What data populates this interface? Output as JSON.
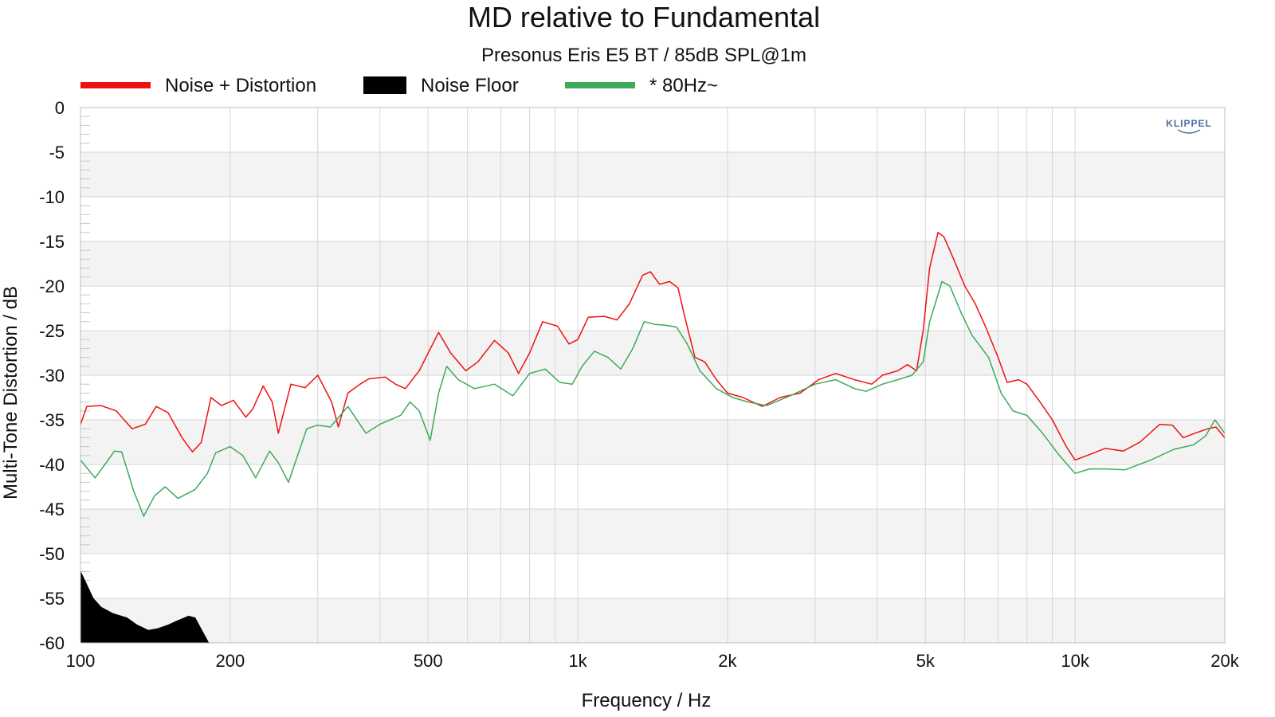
{
  "chart_data": {
    "type": "line",
    "title": "MD relative to Fundamental",
    "subtitle": "Presonus Eris E5 BT / 85dB SPL@1m",
    "xlabel": "Frequency / Hz",
    "ylabel": "Multi-Tone Distortion / dB",
    "x_scale": "log",
    "xlim": [
      100,
      20000
    ],
    "ylim": [
      -60,
      0
    ],
    "x_ticks": [
      100,
      200,
      500,
      1000,
      2000,
      5000,
      10000,
      20000
    ],
    "x_tick_labels": [
      "100",
      "200",
      "500",
      "1k",
      "2k",
      "5k",
      "10k",
      "20k"
    ],
    "y_ticks": [
      0,
      -5,
      -10,
      -15,
      -20,
      -25,
      -30,
      -35,
      -40,
      -45,
      -50,
      -55,
      -60
    ],
    "y_tick_labels": [
      "0",
      "-5",
      "-10",
      "-15",
      "-20",
      "-25",
      "-30",
      "-35",
      "-40",
      "-45",
      "-50",
      "-55",
      "-60"
    ],
    "grid": true,
    "legend_position": "top-left",
    "logo_text": "KLIPPEL",
    "series": [
      {
        "name": "Noise + Distortion",
        "color": "#ee1111",
        "style": "line",
        "points": [
          [
            100,
            -35.5
          ],
          [
            103,
            -33.5
          ],
          [
            110,
            -33.4
          ],
          [
            118,
            -34.0
          ],
          [
            127,
            -36.0
          ],
          [
            135,
            -35.5
          ],
          [
            142,
            -33.5
          ],
          [
            150,
            -34.2
          ],
          [
            160,
            -37.0
          ],
          [
            168,
            -38.6
          ],
          [
            175,
            -37.5
          ],
          [
            183,
            -32.5
          ],
          [
            192,
            -33.4
          ],
          [
            203,
            -32.8
          ],
          [
            215,
            -34.7
          ],
          [
            222,
            -33.8
          ],
          [
            233,
            -31.2
          ],
          [
            243,
            -33.0
          ],
          [
            250,
            -36.5
          ],
          [
            265,
            -31.0
          ],
          [
            283,
            -31.4
          ],
          [
            300,
            -30.0
          ],
          [
            320,
            -33.0
          ],
          [
            330,
            -35.8
          ],
          [
            345,
            -32.0
          ],
          [
            365,
            -31.0
          ],
          [
            380,
            -30.4
          ],
          [
            410,
            -30.2
          ],
          [
            430,
            -31.0
          ],
          [
            450,
            -31.5
          ],
          [
            480,
            -29.5
          ],
          [
            525,
            -25.2
          ],
          [
            555,
            -27.5
          ],
          [
            595,
            -29.5
          ],
          [
            630,
            -28.5
          ],
          [
            680,
            -26.1
          ],
          [
            725,
            -27.5
          ],
          [
            760,
            -29.8
          ],
          [
            800,
            -27.5
          ],
          [
            850,
            -24.0
          ],
          [
            910,
            -24.5
          ],
          [
            960,
            -26.5
          ],
          [
            1000,
            -26.0
          ],
          [
            1050,
            -23.5
          ],
          [
            1130,
            -23.4
          ],
          [
            1200,
            -23.8
          ],
          [
            1270,
            -22.0
          ],
          [
            1350,
            -18.8
          ],
          [
            1400,
            -18.4
          ],
          [
            1460,
            -19.8
          ],
          [
            1530,
            -19.5
          ],
          [
            1590,
            -20.2
          ],
          [
            1650,
            -24.0
          ],
          [
            1720,
            -28.0
          ],
          [
            1800,
            -28.5
          ],
          [
            1900,
            -30.5
          ],
          [
            2000,
            -32.0
          ],
          [
            2150,
            -32.5
          ],
          [
            2350,
            -33.5
          ],
          [
            2550,
            -32.5
          ],
          [
            2800,
            -32.0
          ],
          [
            3050,
            -30.5
          ],
          [
            3300,
            -29.8
          ],
          [
            3600,
            -30.5
          ],
          [
            3900,
            -31.0
          ],
          [
            4100,
            -30.0
          ],
          [
            4400,
            -29.5
          ],
          [
            4600,
            -28.8
          ],
          [
            4800,
            -29.5
          ],
          [
            4950,
            -25.0
          ],
          [
            5100,
            -18.0
          ],
          [
            5300,
            -14.0
          ],
          [
            5450,
            -14.5
          ],
          [
            5700,
            -17.0
          ],
          [
            6000,
            -20.0
          ],
          [
            6300,
            -22.0
          ],
          [
            6600,
            -24.5
          ],
          [
            7000,
            -28.0
          ],
          [
            7300,
            -30.8
          ],
          [
            7700,
            -30.5
          ],
          [
            8000,
            -31.0
          ],
          [
            8500,
            -33.0
          ],
          [
            9000,
            -35.0
          ],
          [
            9600,
            -38.0
          ],
          [
            10000,
            -39.5
          ],
          [
            10800,
            -38.8
          ],
          [
            11500,
            -38.2
          ],
          [
            12500,
            -38.5
          ],
          [
            13500,
            -37.5
          ],
          [
            14800,
            -35.5
          ],
          [
            15700,
            -35.6
          ],
          [
            16500,
            -37.0
          ],
          [
            17400,
            -36.5
          ],
          [
            18500,
            -36.0
          ],
          [
            19200,
            -35.8
          ],
          [
            20000,
            -37.0
          ]
        ]
      },
      {
        "name": "Noise Floor",
        "color": "#000000",
        "style": "area",
        "points": [
          [
            100,
            -52.0
          ],
          [
            103,
            -53.5
          ],
          [
            106,
            -55.0
          ],
          [
            110,
            -56.0
          ],
          [
            116,
            -56.7
          ],
          [
            124,
            -57.2
          ],
          [
            130,
            -58.0
          ],
          [
            137,
            -58.6
          ],
          [
            143,
            -58.4
          ],
          [
            150,
            -58.0
          ],
          [
            157,
            -57.5
          ],
          [
            165,
            -57.0
          ],
          [
            170,
            -57.2
          ],
          [
            175,
            -58.5
          ],
          [
            181,
            -60.0
          ]
        ]
      },
      {
        "name": "* 80Hz~",
        "color": "#3caa5a",
        "style": "line",
        "points": [
          [
            100,
            -39.5
          ],
          [
            107,
            -41.5
          ],
          [
            112,
            -40.0
          ],
          [
            117,
            -38.5
          ],
          [
            121,
            -38.6
          ],
          [
            128,
            -43.0
          ],
          [
            134,
            -45.8
          ],
          [
            141,
            -43.5
          ],
          [
            148,
            -42.5
          ],
          [
            157,
            -43.8
          ],
          [
            170,
            -42.8
          ],
          [
            180,
            -41.0
          ],
          [
            187,
            -38.7
          ],
          [
            200,
            -38.0
          ],
          [
            212,
            -39.0
          ],
          [
            225,
            -41.5
          ],
          [
            240,
            -38.5
          ],
          [
            250,
            -39.8
          ],
          [
            262,
            -42.0
          ],
          [
            285,
            -36.0
          ],
          [
            300,
            -35.6
          ],
          [
            318,
            -35.8
          ],
          [
            345,
            -33.5
          ],
          [
            375,
            -36.5
          ],
          [
            400,
            -35.5
          ],
          [
            440,
            -34.5
          ],
          [
            460,
            -33.0
          ],
          [
            480,
            -34.0
          ],
          [
            505,
            -37.3
          ],
          [
            525,
            -32.0
          ],
          [
            545,
            -29.0
          ],
          [
            575,
            -30.5
          ],
          [
            620,
            -31.5
          ],
          [
            680,
            -31.0
          ],
          [
            740,
            -32.3
          ],
          [
            800,
            -29.8
          ],
          [
            860,
            -29.3
          ],
          [
            920,
            -30.8
          ],
          [
            975,
            -31.0
          ],
          [
            1020,
            -29.0
          ],
          [
            1080,
            -27.3
          ],
          [
            1150,
            -28.0
          ],
          [
            1220,
            -29.3
          ],
          [
            1290,
            -27.0
          ],
          [
            1360,
            -24.0
          ],
          [
            1430,
            -24.3
          ],
          [
            1500,
            -24.4
          ],
          [
            1580,
            -24.6
          ],
          [
            1660,
            -26.5
          ],
          [
            1760,
            -29.5
          ],
          [
            1900,
            -31.5
          ],
          [
            2050,
            -32.5
          ],
          [
            2200,
            -33.0
          ],
          [
            2400,
            -33.4
          ],
          [
            2700,
            -32.2
          ],
          [
            3000,
            -31.0
          ],
          [
            3300,
            -30.5
          ],
          [
            3600,
            -31.5
          ],
          [
            3800,
            -31.8
          ],
          [
            4100,
            -31.0
          ],
          [
            4400,
            -30.5
          ],
          [
            4700,
            -30.0
          ],
          [
            4950,
            -28.5
          ],
          [
            5100,
            -24.0
          ],
          [
            5400,
            -19.5
          ],
          [
            5600,
            -20.0
          ],
          [
            5900,
            -23.0
          ],
          [
            6200,
            -25.5
          ],
          [
            6700,
            -28.0
          ],
          [
            7100,
            -32.0
          ],
          [
            7500,
            -34.0
          ],
          [
            8000,
            -34.5
          ],
          [
            8600,
            -36.5
          ],
          [
            9300,
            -39.0
          ],
          [
            10000,
            -41.0
          ],
          [
            10700,
            -40.5
          ],
          [
            11500,
            -40.5
          ],
          [
            12600,
            -40.6
          ],
          [
            14200,
            -39.5
          ],
          [
            15800,
            -38.3
          ],
          [
            17300,
            -37.8
          ],
          [
            18300,
            -36.8
          ],
          [
            19100,
            -35.0
          ],
          [
            20000,
            -36.5
          ]
        ]
      }
    ]
  }
}
